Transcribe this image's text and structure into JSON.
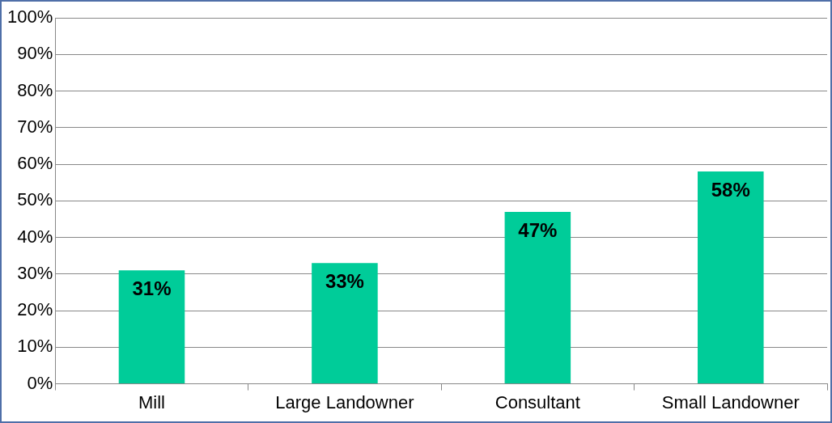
{
  "chart_data": {
    "type": "bar",
    "categories": [
      "Mill",
      "Large Landowner",
      "Consultant",
      "Small Landowner"
    ],
    "values": [
      31,
      33,
      47,
      58
    ],
    "value_labels": [
      "31%",
      "33%",
      "47%",
      "58%"
    ],
    "color": "#00cc99",
    "ylim": [
      0,
      100
    ],
    "yticks": [
      {
        "value": 0,
        "label": "0%"
      },
      {
        "value": 10,
        "label": "10%"
      },
      {
        "value": 20,
        "label": "20%"
      },
      {
        "value": 30,
        "label": "30%"
      },
      {
        "value": 40,
        "label": "40%"
      },
      {
        "value": 50,
        "label": "50%"
      },
      {
        "value": 60,
        "label": "60%"
      },
      {
        "value": 70,
        "label": "70%"
      },
      {
        "value": 80,
        "label": "80%"
      },
      {
        "value": 90,
        "label": "90%"
      },
      {
        "value": 100,
        "label": "100%"
      }
    ],
    "grid": "y"
  }
}
